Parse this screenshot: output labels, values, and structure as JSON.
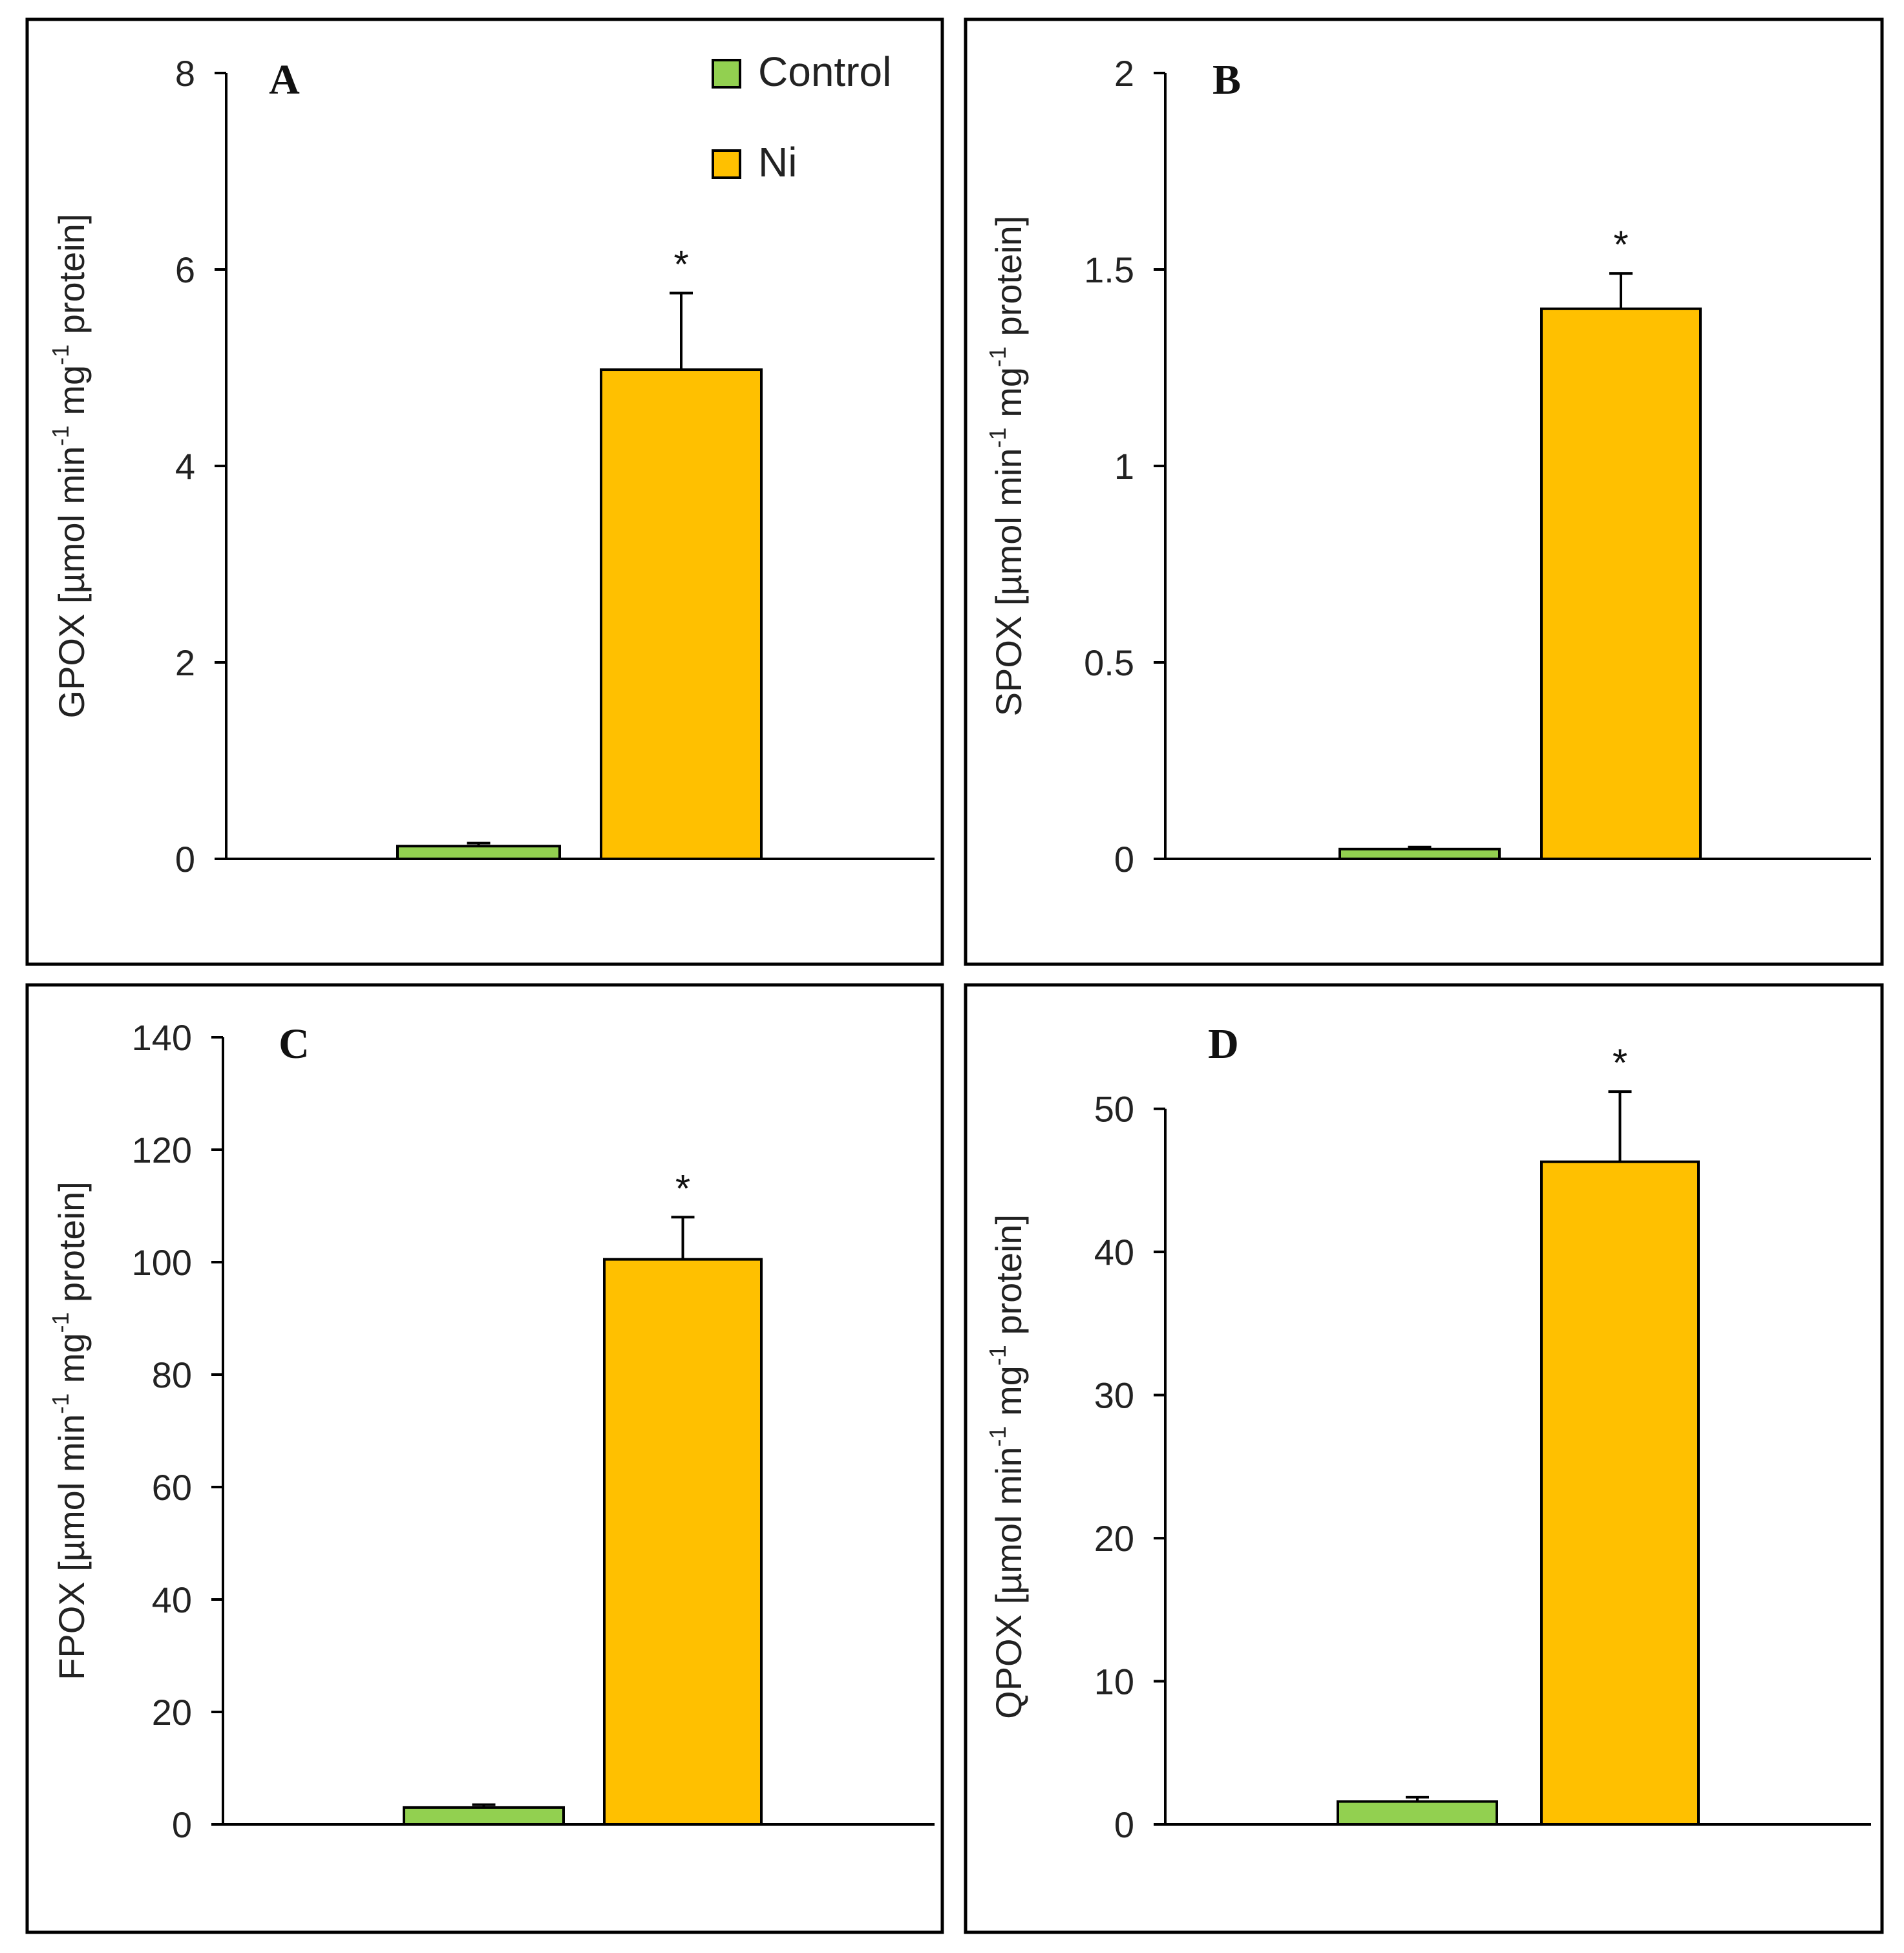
{
  "legend": {
    "items": [
      {
        "label": "Control",
        "color": "#92D050"
      },
      {
        "label": "Ni",
        "color": "#FFC000"
      }
    ]
  },
  "chart_data": [
    {
      "type": "bar",
      "panel": "A",
      "ylabel": "GPOX [µmol min⁻¹ mg⁻¹ protein]",
      "ylabel_parts": [
        "GPOX [µmol min",
        "-1",
        " mg",
        "-1",
        " protein]"
      ],
      "yticks": [
        0,
        2,
        4,
        6,
        8
      ],
      "ytick_labels": [
        "0",
        "2",
        "4",
        "6",
        "8"
      ],
      "ylim": [
        0,
        8
      ],
      "categories": [
        "Control",
        "Ni"
      ],
      "series": [
        {
          "name": "Control",
          "value": 0.13,
          "error": 0.03,
          "color": "#92D050"
        },
        {
          "name": "Ni",
          "value": 4.98,
          "error": 0.78,
          "color": "#FFC000",
          "marker": "*"
        }
      ],
      "legend": "top-right"
    },
    {
      "type": "bar",
      "panel": "B",
      "ylabel": "SPOX [µmol min⁻¹ mg⁻¹ protein]",
      "ylabel_parts": [
        "SPOX [µmol min",
        "-1",
        " mg",
        "-1",
        " protein]"
      ],
      "yticks": [
        0,
        0.5,
        1,
        1.5,
        2
      ],
      "ytick_labels": [
        "0",
        "0.5",
        "1",
        "1.5",
        "2"
      ],
      "ylim": [
        0,
        2
      ],
      "categories": [
        "Control",
        "Ni"
      ],
      "series": [
        {
          "name": "Control",
          "value": 0.025,
          "error": 0.005,
          "color": "#92D050"
        },
        {
          "name": "Ni",
          "value": 1.4,
          "error": 0.09,
          "color": "#FFC000",
          "marker": "*"
        }
      ]
    },
    {
      "type": "bar",
      "panel": "C",
      "ylabel": "FPOX [µmol min⁻¹ mg⁻¹ protein]",
      "ylabel_parts": [
        "FPOX [µmol min",
        "-1",
        " mg",
        "-1",
        " protein]"
      ],
      "yticks": [
        0,
        20,
        40,
        60,
        80,
        100,
        120,
        140
      ],
      "ytick_labels": [
        "0",
        "20",
        "40",
        "60",
        "80",
        "100",
        "120",
        "140"
      ],
      "ylim": [
        0,
        140
      ],
      "categories": [
        "Control",
        "Ni"
      ],
      "series": [
        {
          "name": "Control",
          "value": 3.0,
          "error": 0.5,
          "color": "#92D050"
        },
        {
          "name": "Ni",
          "value": 100.5,
          "error": 7.5,
          "color": "#FFC000",
          "marker": "*"
        }
      ]
    },
    {
      "type": "bar",
      "panel": "D",
      "ylabel": "QPOX [µmol min⁻¹ mg⁻¹ protein]",
      "ylabel_parts": [
        "QPOX [µmol min",
        "-1",
        " mg",
        "-1",
        " protein]"
      ],
      "yticks": [
        0,
        10,
        20,
        30,
        40,
        50
      ],
      "ytick_labels": [
        "0",
        "10",
        "20",
        "30",
        "40",
        "50"
      ],
      "ylim": [
        0,
        55
      ],
      "categories": [
        "Control",
        "Ni"
      ],
      "series": [
        {
          "name": "Control",
          "value": 1.6,
          "error": 0.3,
          "color": "#92D050"
        },
        {
          "name": "Ni",
          "value": 46.3,
          "error": 4.9,
          "color": "#FFC000",
          "marker": "*"
        }
      ]
    }
  ]
}
